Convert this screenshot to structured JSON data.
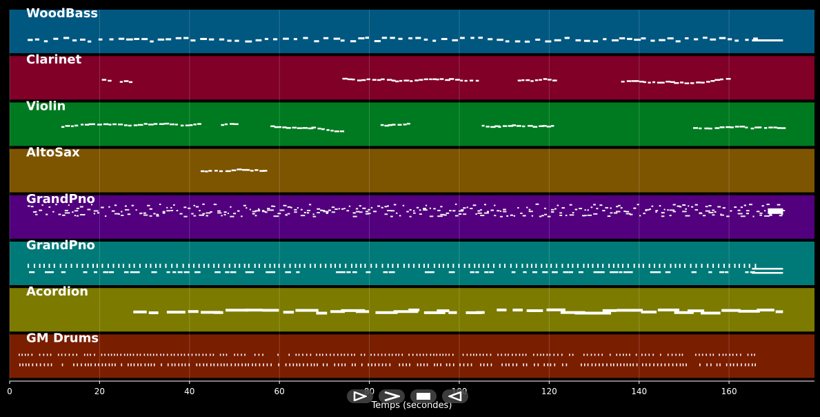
{
  "chart_data": {
    "type": "piano-roll",
    "xlabel": "Temps (secondes)",
    "xlim": [
      0,
      179
    ],
    "xticks": [
      0,
      20,
      40,
      60,
      80,
      100,
      120,
      140,
      160
    ],
    "grid": true,
    "tracks": [
      {
        "name": "WoodBass",
        "color": "#005780",
        "segments": [
          [
            4,
            172
          ]
        ],
        "style": "bass"
      },
      {
        "name": "Clarinet",
        "color": "#800028",
        "segments": [
          [
            20.5,
            22.5
          ],
          [
            24.5,
            27
          ],
          [
            74,
            88
          ],
          [
            89,
            104
          ],
          [
            113,
            121
          ],
          [
            136,
            160
          ]
        ],
        "style": "melody"
      },
      {
        "name": "Violin",
        "color": "#007a20",
        "segments": [
          [
            11.5,
            42.5
          ],
          [
            47,
            51
          ],
          [
            58,
            73.5
          ],
          [
            82.5,
            89
          ],
          [
            105,
            121
          ],
          [
            152,
            172
          ]
        ],
        "style": "melody"
      },
      {
        "name": "AltoSax",
        "color": "#7d5500",
        "segments": [
          [
            42.5,
            57
          ]
        ],
        "style": "melody"
      },
      {
        "name": "GrandPno",
        "color": "#52007e",
        "segments": [
          [
            4,
            172
          ]
        ],
        "style": "dense"
      },
      {
        "name": "GrandPno",
        "color": "#007a78",
        "segments": [
          [
            4,
            172
          ]
        ],
        "style": "chords"
      },
      {
        "name": "Acordion",
        "color": "#7d7a00",
        "segments": [
          [
            27.5,
            42
          ],
          [
            42.5,
            172
          ]
        ],
        "style": "sustain"
      },
      {
        "name": "GM Drums",
        "color": "#7a1e00",
        "segments": [
          [
            2,
            166
          ]
        ],
        "style": "drums"
      }
    ]
  },
  "controls": [
    {
      "name": "play-outline-button",
      "icon": "play-outline-icon"
    },
    {
      "name": "play-button",
      "icon": "play-icon"
    },
    {
      "name": "stop-button",
      "icon": "stop-icon"
    },
    {
      "name": "rewind-button",
      "icon": "rewind-icon"
    }
  ]
}
